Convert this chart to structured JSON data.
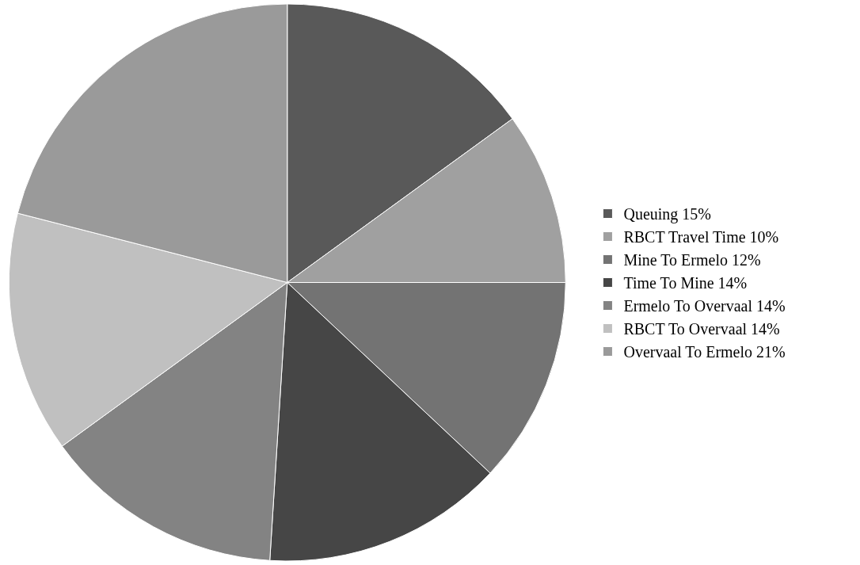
{
  "chart_data": {
    "type": "pie",
    "categories": [
      "Queuing 15%",
      "RBCT Travel Time 10%",
      "Mine To Ermelo 12%",
      "Time To Mine 14%",
      "Ermelo To Overvaal 14%",
      "RBCT To Overvaal 14%",
      "Overvaal To Ermelo 21%"
    ],
    "values": [
      15,
      10,
      12,
      14,
      14,
      14,
      21
    ],
    "colors": [
      "#595959",
      "#a0a0a0",
      "#737373",
      "#464646",
      "#838383",
      "#c0c0c0",
      "#9a9a9a"
    ],
    "legend": "right"
  }
}
